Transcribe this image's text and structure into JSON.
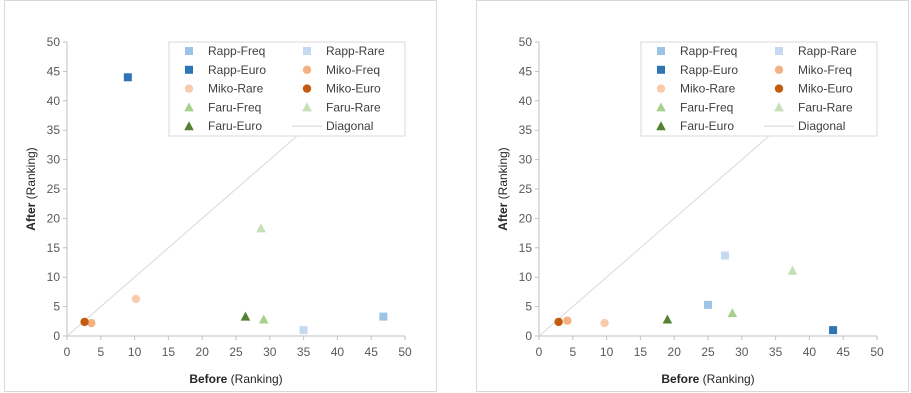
{
  "chart_data": [
    {
      "type": "scatter",
      "xlabel_bold": "Before",
      "xlabel_rest": " (Ranking)",
      "ylabel_bold": "After",
      "ylabel_rest": " (Ranking)",
      "xlim": [
        0,
        50
      ],
      "ylim": [
        0,
        50
      ],
      "xticks": [
        0,
        5,
        10,
        15,
        20,
        25,
        30,
        35,
        40,
        45,
        50
      ],
      "yticks": [
        0,
        5,
        10,
        15,
        20,
        25,
        30,
        35,
        40,
        45,
        50
      ],
      "grid": false,
      "legend_position": "top-right",
      "series": [
        {
          "name": "Rapp-Freq",
          "marker": "square",
          "color": "#9dc3e6",
          "points": [
            [
              46.8,
              3.3
            ]
          ]
        },
        {
          "name": "Rapp-Rare",
          "marker": "square",
          "color": "#c5d9f1",
          "points": [
            [
              35.0,
              1.0
            ]
          ]
        },
        {
          "name": "Rapp-Euro",
          "marker": "square",
          "color": "#2e75b6",
          "points": [
            [
              9.0,
              44.0
            ]
          ]
        },
        {
          "name": "Miko-Freq",
          "marker": "circle",
          "color": "#f4b183",
          "points": [
            [
              3.6,
              2.2
            ]
          ]
        },
        {
          "name": "Miko-Rare",
          "marker": "circle",
          "color": "#f8cbad",
          "points": [
            [
              10.2,
              6.3
            ]
          ]
        },
        {
          "name": "Miko-Euro",
          "marker": "circle",
          "color": "#c55a11",
          "points": [
            [
              2.6,
              2.4
            ]
          ]
        },
        {
          "name": "Faru-Freq",
          "marker": "triangle",
          "color": "#a9d18e",
          "points": [
            [
              29.1,
              2.8
            ]
          ]
        },
        {
          "name": "Faru-Rare",
          "marker": "triangle",
          "color": "#c5e0b4",
          "points": [
            [
              28.7,
              18.3
            ]
          ]
        },
        {
          "name": "Faru-Euro",
          "marker": "triangle",
          "color": "#548235",
          "points": [
            [
              26.4,
              3.3
            ]
          ]
        },
        {
          "name": "Diagonal",
          "marker": "line",
          "color": "#d9d9d9",
          "points": [
            [
              0,
              0
            ],
            [
              50,
              50
            ]
          ]
        }
      ]
    },
    {
      "type": "scatter",
      "xlabel_bold": "Before",
      "xlabel_rest": " (Ranking)",
      "ylabel_bold": "After",
      "ylabel_rest": " (Ranking)",
      "xlim": [
        0,
        50
      ],
      "ylim": [
        0,
        50
      ],
      "xticks": [
        0,
        5,
        10,
        15,
        20,
        25,
        30,
        35,
        40,
        45,
        50
      ],
      "yticks": [
        0,
        5,
        10,
        15,
        20,
        25,
        30,
        35,
        40,
        45,
        50
      ],
      "grid": false,
      "legend_position": "top-right",
      "series": [
        {
          "name": "Rapp-Freq",
          "marker": "square",
          "color": "#9dc3e6",
          "points": [
            [
              25.0,
              5.3
            ]
          ]
        },
        {
          "name": "Rapp-Rare",
          "marker": "square",
          "color": "#c5d9f1",
          "points": [
            [
              27.5,
              13.7
            ]
          ]
        },
        {
          "name": "Rapp-Euro",
          "marker": "square",
          "color": "#2e75b6",
          "points": [
            [
              43.5,
              1.0
            ]
          ]
        },
        {
          "name": "Miko-Freq",
          "marker": "circle",
          "color": "#f4b183",
          "points": [
            [
              4.2,
              2.6
            ]
          ]
        },
        {
          "name": "Miko-Rare",
          "marker": "circle",
          "color": "#f8cbad",
          "points": [
            [
              9.7,
              2.2
            ]
          ]
        },
        {
          "name": "Miko-Euro",
          "marker": "circle",
          "color": "#c55a11",
          "points": [
            [
              2.9,
              2.4
            ]
          ]
        },
        {
          "name": "Faru-Freq",
          "marker": "triangle",
          "color": "#a9d18e",
          "points": [
            [
              28.6,
              3.9
            ]
          ]
        },
        {
          "name": "Faru-Rare",
          "marker": "triangle",
          "color": "#c5e0b4",
          "points": [
            [
              37.5,
              11.1
            ]
          ]
        },
        {
          "name": "Faru-Euro",
          "marker": "triangle",
          "color": "#548235",
          "points": [
            [
              19.0,
              2.8
            ]
          ]
        },
        {
          "name": "Diagonal",
          "marker": "line",
          "color": "#d9d9d9",
          "points": [
            [
              0,
              0
            ],
            [
              50,
              50
            ]
          ]
        }
      ]
    }
  ]
}
